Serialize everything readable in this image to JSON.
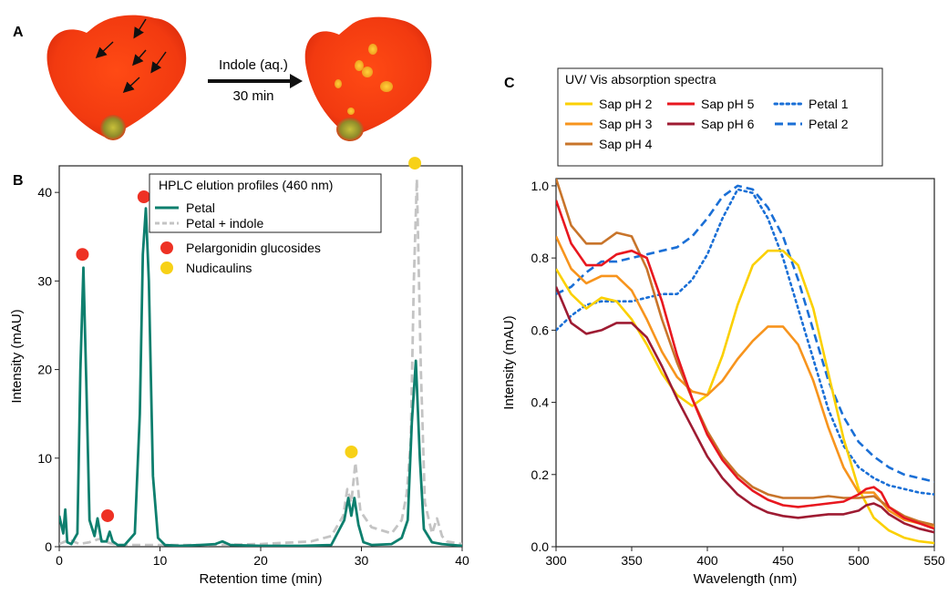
{
  "panels": {
    "a": {
      "letter": "A",
      "arrow_label_top": "Indole (aq.)",
      "arrow_label_bottom": "30 min"
    },
    "b": {
      "letter": "B",
      "legend_title": "HPLC elution profiles (460 nm)",
      "marker_legend": [
        {
          "label": "Pelargonidin glucosides",
          "color": "#ee3124"
        },
        {
          "label": "Nudicaulins",
          "color": "#f7d117"
        }
      ]
    },
    "c": {
      "letter": "C",
      "legend_title": "UV/ Vis absorption spectra"
    }
  },
  "chart_data": [
    {
      "type": "line",
      "xlabel": "Retention time (min)",
      "ylabel": "Intensity (mAU)",
      "xlim": [
        0,
        40
      ],
      "ylim": [
        0,
        43
      ],
      "xticks": [
        0,
        10,
        20,
        30,
        40
      ],
      "yticks": [
        0,
        10,
        20,
        30,
        40
      ],
      "series": [
        {
          "name": "Petal",
          "color": "#0e7f6e",
          "style": "solid",
          "x": [
            0,
            0.4,
            0.6,
            0.8,
            1.2,
            1.8,
            2.1,
            2.4,
            2.7,
            3.0,
            3.5,
            3.8,
            4.2,
            4.7,
            5.0,
            5.3,
            5.8,
            6.5,
            7.5,
            8.0,
            8.3,
            8.6,
            8.9,
            9.3,
            9.8,
            10.5,
            12,
            14,
            15.5,
            16.2,
            17,
            20,
            24,
            27,
            28.3,
            28.7,
            29.0,
            29.3,
            29.7,
            30.2,
            31,
            33,
            34.0,
            34.6,
            35.0,
            35.4,
            35.8,
            36.2,
            37,
            38,
            40
          ],
          "y": [
            3.5,
            1.5,
            4.2,
            0.5,
            0.3,
            1.5,
            20,
            31.5,
            18,
            3,
            1.2,
            3.2,
            0.6,
            0.6,
            1.7,
            0.6,
            0.2,
            0.2,
            1.5,
            15,
            33,
            38.2,
            30,
            8,
            1,
            0.2,
            0.1,
            0.2,
            0.3,
            0.6,
            0.2,
            0.1,
            0.1,
            0.2,
            3,
            5.5,
            3.5,
            5.5,
            2.5,
            0.5,
            0.2,
            0.3,
            1,
            3,
            14,
            21,
            10,
            2,
            0.5,
            0.3,
            0.1
          ]
        },
        {
          "name": "Petal + indole",
          "color": "#c4c4c4",
          "style": "dashed",
          "x": [
            0,
            1,
            2,
            3,
            4,
            5,
            6,
            8,
            10,
            15,
            20,
            25,
            27,
            28.2,
            28.6,
            29.0,
            29.4,
            29.9,
            31,
            33,
            34.0,
            34.5,
            34.9,
            35.2,
            35.5,
            35.9,
            36.3,
            37,
            37.5,
            38,
            38.5,
            40
          ],
          "y": [
            0.3,
            0.8,
            0.3,
            0.5,
            0.9,
            0.4,
            0.2,
            0.2,
            0.2,
            0.2,
            0.3,
            0.6,
            1.2,
            3.5,
            6.5,
            5.0,
            9.5,
            4.0,
            2.2,
            1.5,
            3.0,
            6.0,
            12,
            30,
            41.5,
            20,
            5,
            1.5,
            3.2,
            1.2,
            0.6,
            0.3
          ]
        }
      ],
      "markers": [
        {
          "kind": "Pelargonidin glucosides",
          "x": 2.3,
          "y": 33
        },
        {
          "kind": "Pelargonidin glucosides",
          "x": 4.8,
          "y": 3.5
        },
        {
          "kind": "Pelargonidin glucosides",
          "x": 8.4,
          "y": 39.5
        },
        {
          "kind": "Nudicaulins",
          "x": 29.0,
          "y": 10.7
        },
        {
          "kind": "Nudicaulins",
          "x": 35.3,
          "y": 43.3
        }
      ]
    },
    {
      "type": "line",
      "xlabel": "Wavelength (nm)",
      "ylabel": "Intensity (mAU)",
      "xlim": [
        300,
        550
      ],
      "ylim": [
        0,
        1.02
      ],
      "xticks": [
        300,
        350,
        400,
        450,
        500,
        550
      ],
      "yticks": [
        0.0,
        0.2,
        0.4,
        0.6,
        0.8,
        1.0
      ],
      "ytick_labels": [
        "0.0",
        "0.2",
        "0.4",
        "0.6",
        "0.8",
        "1.0"
      ],
      "series": [
        {
          "name": "Sap pH 2",
          "color": "#fbd000",
          "style": "solid",
          "x": [
            300,
            310,
            320,
            330,
            340,
            350,
            360,
            370,
            380,
            390,
            400,
            410,
            420,
            430,
            440,
            450,
            460,
            470,
            480,
            490,
            500,
            510,
            520,
            530,
            540,
            550
          ],
          "y": [
            0.77,
            0.7,
            0.66,
            0.69,
            0.68,
            0.63,
            0.56,
            0.48,
            0.42,
            0.39,
            0.42,
            0.53,
            0.67,
            0.78,
            0.82,
            0.82,
            0.78,
            0.66,
            0.48,
            0.3,
            0.16,
            0.08,
            0.045,
            0.025,
            0.015,
            0.01
          ]
        },
        {
          "name": "Sap pH 3",
          "color": "#f7941d",
          "style": "solid",
          "x": [
            300,
            310,
            320,
            330,
            340,
            350,
            360,
            370,
            380,
            390,
            400,
            410,
            420,
            430,
            440,
            450,
            460,
            470,
            480,
            490,
            500,
            510,
            520,
            530,
            540,
            550
          ],
          "y": [
            0.86,
            0.77,
            0.73,
            0.75,
            0.75,
            0.71,
            0.63,
            0.54,
            0.47,
            0.43,
            0.42,
            0.46,
            0.52,
            0.57,
            0.61,
            0.61,
            0.56,
            0.46,
            0.33,
            0.22,
            0.15,
            0.15,
            0.1,
            0.075,
            0.065,
            0.055
          ]
        },
        {
          "name": "Sap pH 4",
          "color": "#c8742a",
          "style": "solid",
          "x": [
            300,
            310,
            320,
            330,
            340,
            350,
            360,
            370,
            380,
            390,
            400,
            410,
            420,
            430,
            440,
            450,
            460,
            470,
            480,
            490,
            500,
            510,
            520,
            530,
            540,
            550
          ],
          "y": [
            1.02,
            0.89,
            0.84,
            0.84,
            0.87,
            0.86,
            0.77,
            0.63,
            0.51,
            0.41,
            0.32,
            0.25,
            0.2,
            0.165,
            0.145,
            0.135,
            0.135,
            0.135,
            0.14,
            0.135,
            0.135,
            0.14,
            0.11,
            0.085,
            0.07,
            0.06
          ]
        },
        {
          "name": "Sap pH 5",
          "color": "#e8171f",
          "style": "solid",
          "x": [
            300,
            310,
            320,
            330,
            340,
            350,
            360,
            370,
            380,
            390,
            400,
            410,
            420,
            430,
            440,
            450,
            460,
            470,
            480,
            490,
            500,
            505,
            510,
            515,
            520,
            530,
            540,
            550
          ],
          "y": [
            0.96,
            0.84,
            0.78,
            0.78,
            0.81,
            0.82,
            0.8,
            0.68,
            0.53,
            0.41,
            0.31,
            0.24,
            0.19,
            0.155,
            0.13,
            0.115,
            0.11,
            0.115,
            0.12,
            0.125,
            0.145,
            0.16,
            0.165,
            0.15,
            0.11,
            0.08,
            0.065,
            0.05
          ]
        },
        {
          "name": "Sap pH 6",
          "color": "#9e1b32",
          "style": "solid",
          "x": [
            300,
            310,
            320,
            330,
            340,
            350,
            360,
            370,
            380,
            390,
            400,
            410,
            420,
            430,
            440,
            450,
            460,
            470,
            480,
            490,
            500,
            505,
            510,
            515,
            520,
            530,
            540,
            550
          ],
          "y": [
            0.72,
            0.62,
            0.59,
            0.6,
            0.62,
            0.62,
            0.58,
            0.5,
            0.41,
            0.33,
            0.25,
            0.19,
            0.145,
            0.115,
            0.095,
            0.085,
            0.08,
            0.085,
            0.09,
            0.09,
            0.1,
            0.115,
            0.12,
            0.11,
            0.09,
            0.065,
            0.05,
            0.04
          ]
        },
        {
          "name": "Petal 1",
          "color": "#1a6fd6",
          "style": "dotted",
          "x": [
            300,
            310,
            320,
            330,
            340,
            350,
            360,
            370,
            380,
            390,
            400,
            410,
            420,
            430,
            440,
            450,
            460,
            470,
            480,
            490,
            500,
            510,
            520,
            530,
            540,
            550
          ],
          "y": [
            0.6,
            0.64,
            0.67,
            0.68,
            0.68,
            0.68,
            0.69,
            0.7,
            0.7,
            0.74,
            0.81,
            0.91,
            0.99,
            0.98,
            0.91,
            0.8,
            0.66,
            0.52,
            0.38,
            0.28,
            0.22,
            0.19,
            0.17,
            0.16,
            0.15,
            0.145
          ]
        },
        {
          "name": "Petal 2",
          "color": "#1a6fd6",
          "style": "dashed",
          "x": [
            300,
            310,
            320,
            330,
            340,
            350,
            360,
            370,
            380,
            390,
            400,
            410,
            420,
            430,
            440,
            450,
            460,
            470,
            480,
            490,
            500,
            510,
            520,
            530,
            540,
            550
          ],
          "y": [
            0.7,
            0.72,
            0.76,
            0.79,
            0.79,
            0.8,
            0.81,
            0.82,
            0.83,
            0.86,
            0.91,
            0.97,
            1.0,
            0.99,
            0.94,
            0.86,
            0.74,
            0.6,
            0.46,
            0.36,
            0.29,
            0.25,
            0.22,
            0.2,
            0.19,
            0.18
          ]
        }
      ]
    }
  ]
}
